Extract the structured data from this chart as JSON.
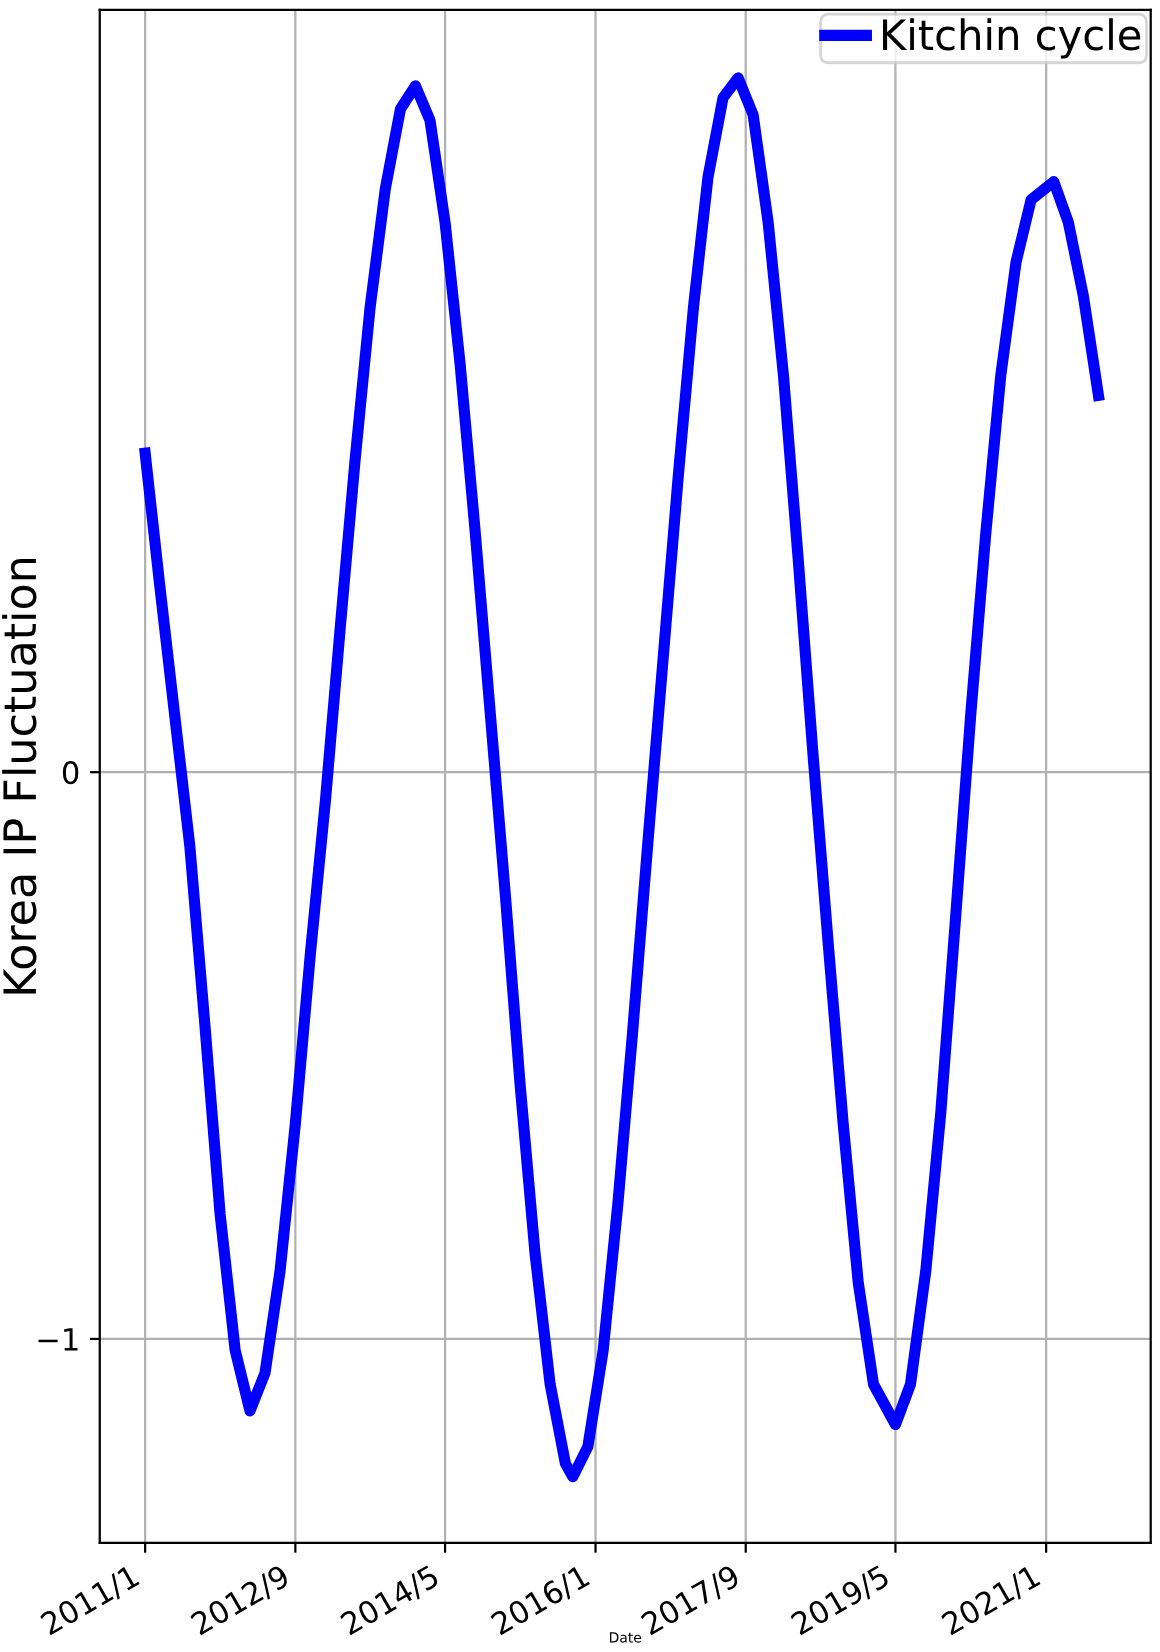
{
  "chart_data": {
    "type": "line",
    "xlabel": "Date",
    "ylabel": "Korea IP Fluctuation",
    "x": [
      "2011-01",
      "2011-03",
      "2011-05",
      "2011-07",
      "2011-09",
      "2011-11",
      "2012-01",
      "2012-03",
      "2012-05",
      "2012-07",
      "2012-09",
      "2012-11",
      "2013-01",
      "2013-03",
      "2013-05",
      "2013-07",
      "2013-09",
      "2013-11",
      "2014-01",
      "2014-03",
      "2014-05",
      "2014-07",
      "2014-09",
      "2014-11",
      "2015-01",
      "2015-03",
      "2015-05",
      "2015-07",
      "2015-09",
      "2015-10",
      "2015-12",
      "2016-02",
      "2016-04",
      "2016-06",
      "2016-08",
      "2016-10",
      "2016-12",
      "2017-02",
      "2017-04",
      "2017-06",
      "2017-08",
      "2017-10",
      "2017-12",
      "2018-02",
      "2018-04",
      "2018-06",
      "2018-08",
      "2018-10",
      "2018-12",
      "2019-02",
      "2019-05",
      "2019-07",
      "2019-09",
      "2019-11",
      "2020-01",
      "2020-03",
      "2020-05",
      "2020-07",
      "2020-09",
      "2020-11",
      "2021-02",
      "2021-04",
      "2021-06",
      "2021-08"
    ],
    "series": [
      {
        "name": "Kitchin cycle",
        "color": "#0000ff",
        "values": [
          0.563,
          0.33,
          0.1,
          -0.13,
          -0.45,
          -0.78,
          -1.02,
          -1.127,
          -1.06,
          -0.88,
          -0.62,
          -0.32,
          -0.05,
          0.25,
          0.55,
          0.82,
          1.03,
          1.17,
          1.211,
          1.15,
          0.97,
          0.72,
          0.42,
          0.1,
          -0.22,
          -0.55,
          -0.85,
          -1.08,
          -1.22,
          -1.243,
          -1.19,
          -1.02,
          -0.76,
          -0.45,
          -0.12,
          0.2,
          0.52,
          0.82,
          1.05,
          1.19,
          1.225,
          1.16,
          0.97,
          0.7,
          0.38,
          0.03,
          -0.3,
          -0.62,
          -0.9,
          -1.08,
          -1.151,
          -1.08,
          -0.88,
          -0.6,
          -0.25,
          0.1,
          0.42,
          0.7,
          0.9,
          1.01,
          1.042,
          0.97,
          0.84,
          0.665
        ]
      }
    ],
    "xlim": [
      "2010-07",
      "2022-03"
    ],
    "xticks": [
      {
        "value": "2011-01",
        "label": "2011/1"
      },
      {
        "value": "2012-09",
        "label": "2012/9"
      },
      {
        "value": "2014-05",
        "label": "2014/5"
      },
      {
        "value": "2016-01",
        "label": "2016/1"
      },
      {
        "value": "2017-09",
        "label": "2017/9"
      },
      {
        "value": "2019-05",
        "label": "2019/5"
      },
      {
        "value": "2021-01",
        "label": "2021/1"
      }
    ],
    "ylim": [
      -1.36,
      1.345
    ],
    "yticks": [
      {
        "value": -1,
        "label": "−1"
      },
      0
    ],
    "grid": true,
    "legend": "top right",
    "marker": "none",
    "line_style": "solid"
  }
}
